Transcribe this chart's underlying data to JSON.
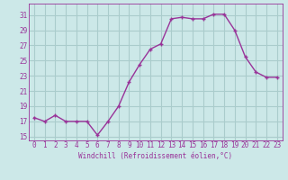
{
  "x": [
    0,
    1,
    2,
    3,
    4,
    5,
    6,
    7,
    8,
    9,
    10,
    11,
    12,
    13,
    14,
    15,
    16,
    17,
    18,
    19,
    20,
    21,
    22,
    23
  ],
  "y": [
    17.5,
    17.0,
    17.8,
    17.0,
    17.0,
    17.0,
    15.2,
    17.0,
    19.0,
    22.2,
    24.5,
    26.5,
    27.2,
    30.5,
    30.7,
    30.5,
    30.5,
    31.1,
    31.1,
    29.0,
    25.5,
    23.5,
    22.8,
    22.8
  ],
  "line_color": "#993399",
  "marker": "+",
  "bg_color": "#cce8e8",
  "grid_color": "#aacccc",
  "xlabel": "Windchill (Refroidissement éolien,°C)",
  "ylim": [
    14.5,
    32.5
  ],
  "yticks": [
    15,
    17,
    19,
    21,
    23,
    25,
    27,
    29,
    31
  ],
  "xlim": [
    -0.5,
    23.5
  ],
  "xticks": [
    0,
    1,
    2,
    3,
    4,
    5,
    6,
    7,
    8,
    9,
    10,
    11,
    12,
    13,
    14,
    15,
    16,
    17,
    18,
    19,
    20,
    21,
    22,
    23
  ],
  "tick_label_color": "#993399",
  "xlabel_color": "#993399",
  "axis_color": "#993399",
  "linewidth": 1.0,
  "markersize": 3,
  "markeredgewidth": 1.0
}
